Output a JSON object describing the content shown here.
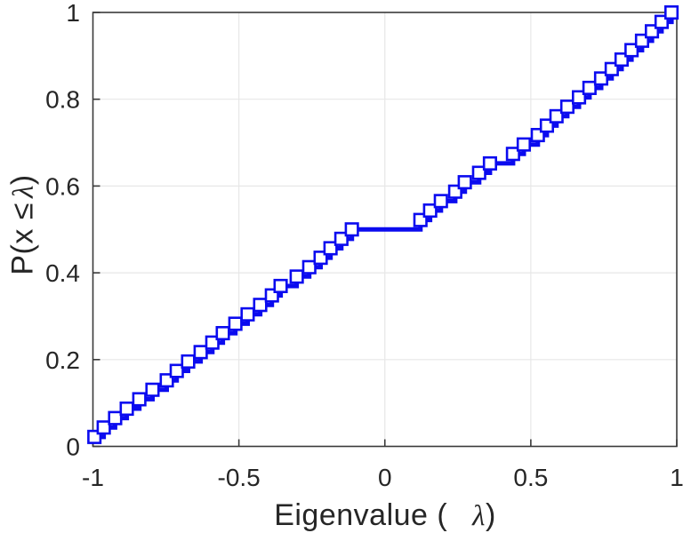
{
  "chart_data": {
    "type": "step",
    "subtype": "empirical-cdf-stairs-with-hollow-square-markers",
    "title": "",
    "xlabel": "Eigenvalue (  λ)",
    "ylabel": "P(x ≤ λ)",
    "xlabel_parts": {
      "prefix": "Eigenvalue ( ",
      "lambda": "λ",
      "suffix": ")"
    },
    "ylabel_parts": {
      "prefix": "P(x ≤",
      "lambda": "λ",
      "suffix": ")"
    },
    "xlim": [
      -1,
      1
    ],
    "ylim": [
      0,
      1
    ],
    "xticks": [
      -1,
      -0.5,
      0,
      0.5,
      1
    ],
    "xtick_labels": [
      "-1",
      "-0.5",
      "0",
      "0.5",
      "1"
    ],
    "yticks": [
      0,
      0.2,
      0.4,
      0.6,
      0.8,
      1
    ],
    "ytick_labels": [
      "0",
      "0.2",
      "0.4",
      "0.6",
      "0.8",
      "1"
    ],
    "grid": true,
    "legend": null,
    "n_points": 46,
    "line_color": "#0b0bef",
    "marker": "hollow-square",
    "marker_fill": "#ffffff",
    "grid_color": "#e7e7e7",
    "axis_color": "#3a3a3a",
    "x": [
      -0.995,
      -0.963,
      -0.924,
      -0.884,
      -0.841,
      -0.796,
      -0.747,
      -0.713,
      -0.674,
      -0.631,
      -0.591,
      -0.555,
      -0.512,
      -0.47,
      -0.427,
      -0.387,
      -0.357,
      -0.302,
      -0.259,
      -0.22,
      -0.186,
      -0.149,
      -0.113,
      0.122,
      0.155,
      0.192,
      0.241,
      0.274,
      0.323,
      0.36,
      0.439,
      0.476,
      0.524,
      0.555,
      0.588,
      0.625,
      0.665,
      0.701,
      0.741,
      0.777,
      0.811,
      0.845,
      0.881,
      0.915,
      0.948,
      0.982
    ],
    "y": [
      0.0217,
      0.0435,
      0.0652,
      0.087,
      0.1087,
      0.1304,
      0.1522,
      0.1739,
      0.1957,
      0.2174,
      0.2391,
      0.2609,
      0.2826,
      0.3043,
      0.3261,
      0.3478,
      0.3696,
      0.3913,
      0.413,
      0.4348,
      0.4565,
      0.4783,
      0.5,
      0.5217,
      0.5435,
      0.5652,
      0.587,
      0.6087,
      0.6304,
      0.6522,
      0.6739,
      0.6957,
      0.7174,
      0.7391,
      0.7609,
      0.7826,
      0.8043,
      0.8261,
      0.8478,
      0.8696,
      0.8913,
      0.913,
      0.9348,
      0.9565,
      0.9783,
      1.0
    ],
    "annotations": [
      "flat plateau at P = 0.5 between λ ≈ -0.11 and λ ≈ 0.12"
    ]
  }
}
